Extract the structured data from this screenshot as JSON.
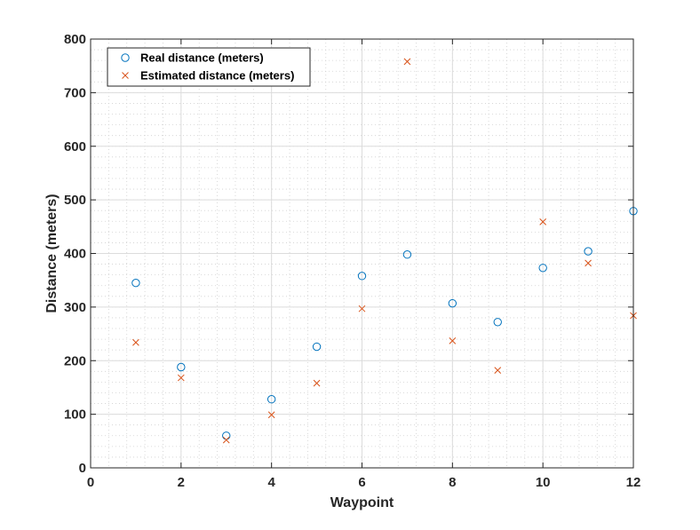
{
  "chart_data": {
    "type": "scatter",
    "title": "",
    "xlabel": "Waypoint",
    "ylabel": "Distance (meters)",
    "xlim": [
      0,
      12
    ],
    "ylim": [
      0,
      800
    ],
    "xticks": [
      0,
      2,
      4,
      6,
      8,
      10,
      12
    ],
    "yticks": [
      0,
      100,
      200,
      300,
      400,
      500,
      600,
      700,
      800
    ],
    "grid": true,
    "minor_grid": true,
    "legend_position": "top-left",
    "x": [
      1,
      2,
      3,
      4,
      5,
      6,
      7,
      8,
      9,
      10,
      11,
      12
    ],
    "series": [
      {
        "name": "Real distance (meters)",
        "marker": "circle",
        "color": "#0072BD",
        "values": [
          345,
          188,
          60,
          128,
          226,
          358,
          398,
          307,
          272,
          373,
          404,
          479
        ]
      },
      {
        "name": "Estimated distance (meters)",
        "marker": "cross",
        "color": "#D95319",
        "values": [
          234,
          168,
          52,
          99,
          158,
          297,
          758,
          237,
          182,
          459,
          382,
          284
        ]
      }
    ]
  }
}
